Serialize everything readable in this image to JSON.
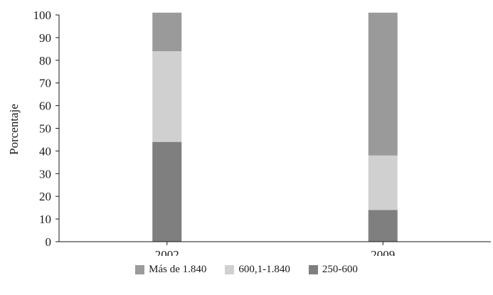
{
  "chart_data": {
    "type": "bar",
    "stacked": true,
    "title": "",
    "xlabel": "",
    "ylabel": "Porcentaje",
    "ylim": [
      0,
      100
    ],
    "yticks": [
      0,
      10,
      20,
      30,
      40,
      50,
      60,
      70,
      80,
      90,
      100
    ],
    "grid": false,
    "legend_position": "bottom",
    "categories": [
      "2002",
      "2009"
    ],
    "series": [
      {
        "name": "250-600",
        "values": [
          44,
          14
        ],
        "color": "#7f7f7f"
      },
      {
        "name": "600,1-1.840",
        "values": [
          40,
          24
        ],
        "color": "#d0d0d0"
      },
      {
        "name": "Más de 1.840",
        "values": [
          17,
          63
        ],
        "color": "#9a9a9a"
      }
    ],
    "legend_order": [
      "Más de 1.840",
      "600,1-1.840",
      "250-600"
    ]
  }
}
